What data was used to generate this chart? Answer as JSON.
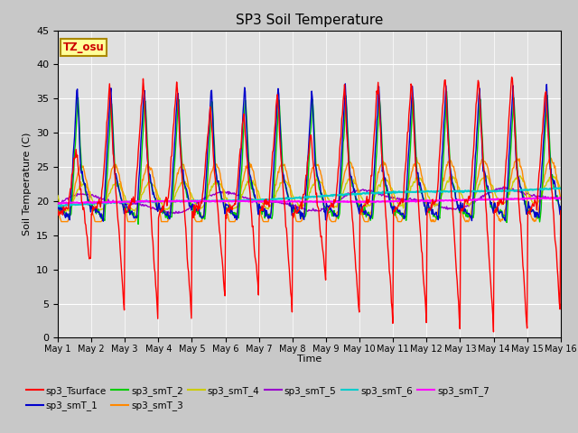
{
  "title": "SP3 Soil Temperature",
  "xlabel": "Time",
  "ylabel": "Soil Temperature (C)",
  "ylim": [
    0,
    45
  ],
  "xlim": [
    0,
    15
  ],
  "annotation": "TZ_osu",
  "annotation_color": "#cc0000",
  "annotation_bg": "#ffff99",
  "annotation_border": "#aa8800",
  "fig_color": "#c8c8c8",
  "plot_bg": "#e0e0e0",
  "grid_color": "#ffffff",
  "xtick_labels": [
    "May 1",
    "May 2",
    "May 3",
    "May 4",
    "May 5",
    "May 6",
    "May 7",
    "May 8",
    "May 9",
    "May 10",
    "May 11",
    "May 12",
    "May 13",
    "May 14",
    "May 15",
    "May 16"
  ],
  "series_colors": {
    "sp3_Tsurface": "#ff0000",
    "sp3_smT_1": "#0000cc",
    "sp3_smT_2": "#00cc00",
    "sp3_smT_3": "#ff8800",
    "sp3_smT_4": "#cccc00",
    "sp3_smT_5": "#9900cc",
    "sp3_smT_6": "#00cccc",
    "sp3_smT_7": "#ff00ff"
  }
}
